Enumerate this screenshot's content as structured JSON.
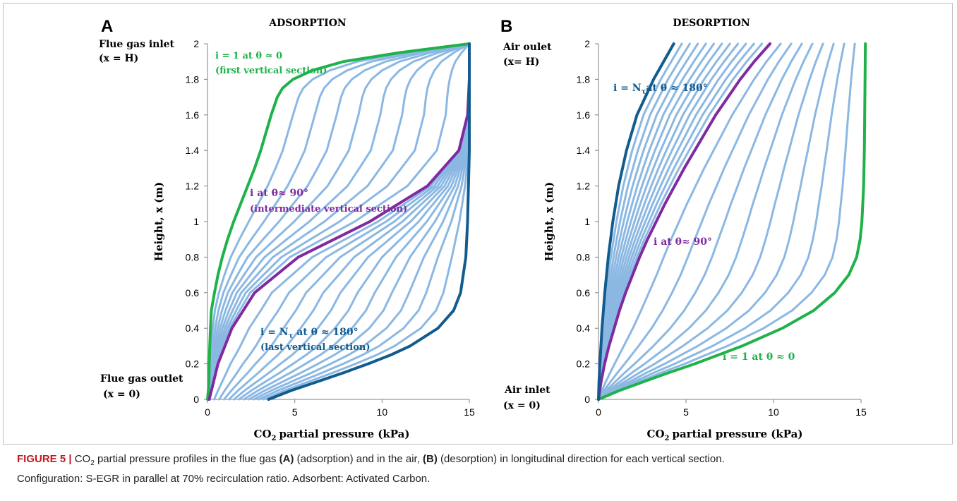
{
  "chart_data": [
    {
      "panel_letter": "A",
      "title": "ADSORPTION",
      "type": "line",
      "xlabel": "partial pressure (kPa)",
      "xlabel_prefix": "CO",
      "xlabel_sub": "2",
      "ylabel": "Height, x (m)",
      "xlim": [
        0,
        15
      ],
      "ylim": [
        0,
        2
      ],
      "xticks": [
        "0",
        "5",
        "10",
        "15"
      ],
      "yticks": [
        "0",
        "0.2",
        "0.4",
        "0.6",
        "0.8",
        "1",
        "1.2",
        "1.4",
        "1.6",
        "1.8",
        "2"
      ],
      "top_label": [
        "Flue gas inlet",
        "(x = H)"
      ],
      "bottom_label": [
        "Flue gas outlet",
        "(x = 0)"
      ],
      "series": [
        {
          "role": "first",
          "color": "#1fb14a",
          "y": [
            0,
            0.05,
            0.1,
            0.2,
            0.3,
            0.4,
            0.5,
            0.6,
            0.7,
            0.8,
            0.9,
            1,
            1.1,
            1.2,
            1.3,
            1.4,
            1.5,
            1.6,
            1.7,
            1.75,
            1.8,
            1.85,
            1.9,
            1.95,
            2
          ],
          "x": [
            0,
            0.05,
            0.08,
            0.1,
            0.13,
            0.17,
            0.22,
            0.4,
            0.6,
            0.85,
            1.15,
            1.5,
            1.9,
            2.3,
            2.7,
            3.05,
            3.35,
            3.65,
            4.0,
            4.3,
            4.9,
            6.0,
            7.8,
            11.0,
            15
          ]
        },
        {
          "role": "intermediate",
          "color": "#7f2aa0",
          "y": [
            0,
            0.2,
            0.4,
            0.6,
            0.8,
            1.0,
            1.2,
            1.4,
            1.6,
            1.8,
            2.0
          ],
          "x": [
            0.1,
            0.6,
            1.4,
            2.7,
            5.2,
            9.3,
            12.6,
            14.4,
            14.9,
            15,
            15
          ]
        },
        {
          "role": "last",
          "color": "#125b8f",
          "y": [
            0,
            0.05,
            0.1,
            0.15,
            0.2,
            0.25,
            0.3,
            0.4,
            0.5,
            0.6,
            0.8,
            1.0,
            1.2,
            1.4,
            1.6,
            1.8,
            2.0
          ],
          "x": [
            3.5,
            4.8,
            6.3,
            7.8,
            9.2,
            10.5,
            11.6,
            13.2,
            14.1,
            14.5,
            14.8,
            14.9,
            14.95,
            15,
            15,
            15,
            15
          ]
        }
      ],
      "annotations": [
        {
          "lines": [
            "i = 1  at θ ≈ 0",
            "(first vertical section)"
          ],
          "color": "#1fb14a"
        },
        {
          "lines": [
            "i at θ≈ 90°",
            "(intermediate vertical section)"
          ],
          "color": "#7f2aa0"
        },
        {
          "lines": [
            "i = N",
            "τ",
            " at θ ≈  180°",
            "(last vertical section)"
          ],
          "color": "#125b8f"
        }
      ]
    },
    {
      "panel_letter": "B",
      "title": "DESORPTION",
      "type": "line",
      "xlabel": "partial pressure (kPa)",
      "xlabel_prefix": "CO",
      "xlabel_sub": "2",
      "ylabel": "Height, x (m)",
      "xlim": [
        0,
        15
      ],
      "ylim": [
        0,
        2
      ],
      "xticks": [
        "0",
        "5",
        "10",
        "15"
      ],
      "yticks": [
        "0",
        "0.2",
        "0.4",
        "0.6",
        "0.8",
        "1",
        "1.2",
        "1.4",
        "1.6",
        "1.8",
        "2"
      ],
      "top_label": [
        "Air oulet",
        "(x= H)"
      ],
      "bottom_label": [
        "Air inlet",
        "(x = 0)"
      ],
      "series": [
        {
          "role": "first",
          "color": "#1fb14a",
          "y": [
            0,
            0.05,
            0.1,
            0.15,
            0.2,
            0.3,
            0.4,
            0.5,
            0.6,
            0.7,
            0.8,
            0.9,
            1.0,
            1.1,
            1.2,
            1.3,
            1.4,
            1.5,
            1.6,
            1.7,
            1.8,
            1.9,
            2.0
          ],
          "x": [
            0,
            1.2,
            2.6,
            4.0,
            5.5,
            8.2,
            10.5,
            12.3,
            13.5,
            14.3,
            14.75,
            14.95,
            15.05,
            15.1,
            15.15,
            15.17,
            15.19,
            15.2,
            15.21,
            15.22,
            15.23,
            15.24,
            15.25
          ]
        },
        {
          "role": "intermediate",
          "color": "#7f2aa0",
          "y": [
            0,
            0.1,
            0.2,
            0.3,
            0.4,
            0.5,
            0.6,
            0.7,
            0.8,
            0.9,
            1.0,
            1.1,
            1.2,
            1.3,
            1.4,
            1.5,
            1.6,
            1.7,
            1.8,
            1.9,
            2.0
          ],
          "x": [
            0,
            0.15,
            0.35,
            0.6,
            0.9,
            1.2,
            1.55,
            1.95,
            2.35,
            2.8,
            3.3,
            3.8,
            4.35,
            4.9,
            5.5,
            6.1,
            6.7,
            7.4,
            8.1,
            8.9,
            9.8
          ]
        },
        {
          "role": "last",
          "color": "#125b8f",
          "y": [
            0,
            0.1,
            0.2,
            0.4,
            0.6,
            0.8,
            1.0,
            1.2,
            1.4,
            1.6,
            1.8,
            2.0
          ],
          "x": [
            0,
            0.03,
            0.08,
            0.2,
            0.36,
            0.56,
            0.82,
            1.15,
            1.6,
            2.2,
            3.15,
            4.3
          ]
        }
      ],
      "annotations": [
        {
          "lines": [
            "i = N",
            "τ",
            "at θ ≈  180°"
          ],
          "color": "#125b8f"
        },
        {
          "lines": [
            "i at θ≈ 90°"
          ],
          "color": "#7f2aa0"
        },
        {
          "lines": [
            "i = 1 at θ ≈ 0"
          ],
          "color": "#1fb14a"
        }
      ]
    }
  ],
  "caption": {
    "fig_label": "FIGURE 5 |",
    "co2": "CO",
    "co2_sub": "2",
    "text_1": " partial pressure profiles in the flue gas ",
    "bold_a": "(A)",
    "text_2": " (adsorption) and in the air, ",
    "bold_b": "(B)",
    "text_3": " (desorption) in longitudinal direction for each vertical section.",
    "line_2": "Configuration: S-EGR in parallel at 70% recirculation ratio. Adsorbent: Activated Carbon."
  },
  "colors": {
    "intermediate_curves": "#8bb8e3",
    "axis": "#808080"
  }
}
